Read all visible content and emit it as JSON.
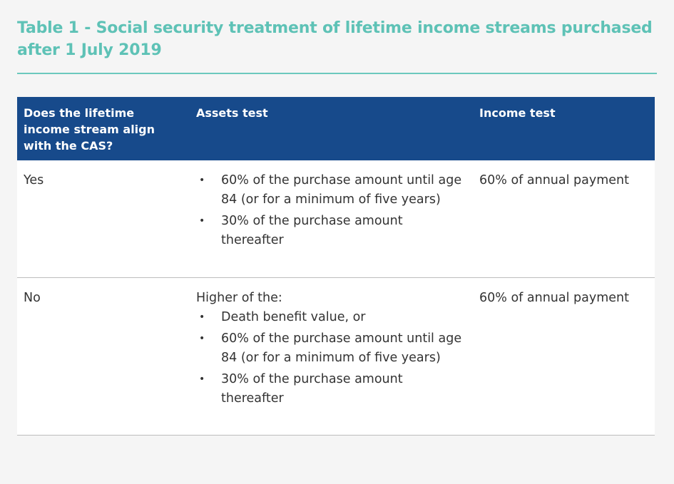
{
  "title": "Table 1 - Social security treatment of lifetime income streams purchased after 1 July 2019",
  "headers": [
    "Does the lifetime income stream align with the CAS?",
    "Assets test",
    "Income test"
  ],
  "rows": [
    {
      "col1": "Yes",
      "assets_lead": "",
      "assets_items": [
        "60% of the purchase amount until age 84 (or for a minimum of five years)",
        "30% of the purchase amount thereafter"
      ],
      "income": "60% of annual payment"
    },
    {
      "col1": "No",
      "assets_lead": "Higher of the:",
      "assets_items": [
        "Death benefit value, or",
        "60% of the purchase amount until age 84 (or for a minimum of five years)",
        "30% of the purchase amount thereafter"
      ],
      "income": "60% of annual payment"
    }
  ],
  "colors": {
    "title": "#5ec2b6",
    "header_bg": "#174a8b",
    "header_text": "#ffffff",
    "rule": "#6cc9bd"
  }
}
